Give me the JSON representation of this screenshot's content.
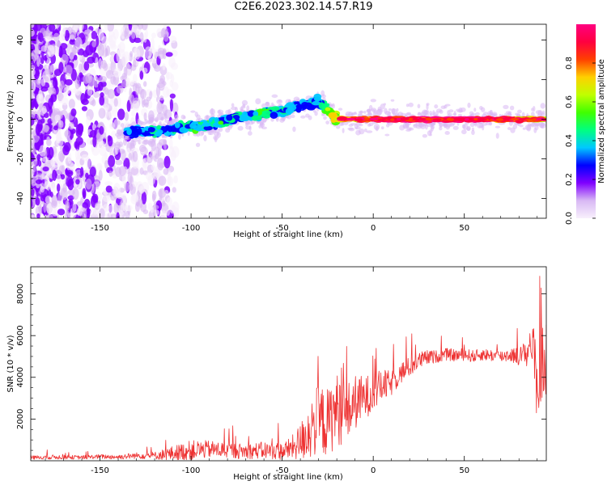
{
  "title": "C2E6.2023.302.14.57.R19",
  "chart_data": [
    {
      "type": "heatmap",
      "xlabel": "Height of straight line (km)",
      "ylabel": "Frequency (Hz)",
      "xlim": [
        -188,
        95
      ],
      "ylim": [
        -50,
        48
      ],
      "xticks": [
        -150,
        -100,
        -50,
        0,
        50
      ],
      "yticks": [
        40,
        20,
        0,
        -20,
        -40
      ],
      "colorbar": {
        "label": "Normalized spectral amplitude",
        "range": [
          0,
          1
        ],
        "ticks": [
          "0.0",
          "0.2",
          "0.4",
          "0.6",
          "0.8"
        ],
        "tick_values": [
          0,
          0.2,
          0.4,
          0.6,
          0.8
        ],
        "colormap": "hsv-rainbow",
        "colors": [
          "#f8f0fc",
          "#d8b8f4",
          "#8000ff",
          "#0000ff",
          "#00c8ff",
          "#00ff80",
          "#40ff00",
          "#c0ff00",
          "#ffd000",
          "#ff4000",
          "#ff0040",
          "#ff0080"
        ]
      },
      "ridge": [
        {
          "x": -135,
          "y": -6,
          "amp": 0.3
        },
        {
          "x": -120,
          "y": -6,
          "amp": 0.35
        },
        {
          "x": -110,
          "y": -5,
          "amp": 0.35
        },
        {
          "x": -100,
          "y": -4,
          "amp": 0.4
        },
        {
          "x": -90,
          "y": -3,
          "amp": 0.4
        },
        {
          "x": -80,
          "y": 0,
          "amp": 0.35
        },
        {
          "x": -70,
          "y": 1,
          "amp": 0.4
        },
        {
          "x": -60,
          "y": 3,
          "amp": 0.4
        },
        {
          "x": -50,
          "y": 4,
          "amp": 0.35
        },
        {
          "x": -40,
          "y": 7,
          "amp": 0.3
        },
        {
          "x": -30,
          "y": 9,
          "amp": 0.3
        },
        {
          "x": -20,
          "y": 0,
          "amp": 0.7
        },
        {
          "x": 0,
          "y": 0,
          "amp": 0.9
        },
        {
          "x": 50,
          "y": 0,
          "amp": 1.0
        },
        {
          "x": 95,
          "y": 0,
          "amp": 0.7
        }
      ]
    },
    {
      "type": "line",
      "xlabel": "Height of straight line (km)",
      "ylabel": "SNR (10 * v/v)",
      "xlim": [
        -188,
        95
      ],
      "ylim": [
        0,
        9300
      ],
      "xticks": [
        -150,
        -100,
        -50,
        0,
        50
      ],
      "yticks": [
        2000,
        4000,
        6000,
        8000
      ],
      "series": [
        {
          "color": "#ee3333",
          "x": [
            -188,
            -175,
            -160,
            -150,
            -140,
            -130,
            -120,
            -110,
            -100,
            -90,
            -80,
            -70,
            -60,
            -50,
            -45,
            -40,
            -35,
            -30,
            -25,
            -20,
            -15,
            -10,
            -5,
            0,
            5,
            10,
            15,
            20,
            25,
            30,
            35,
            40,
            45,
            50,
            55,
            60,
            65,
            70,
            75,
            80,
            85,
            88,
            90,
            93,
            95
          ],
          "y": [
            150,
            180,
            160,
            200,
            180,
            250,
            250,
            350,
            500,
            550,
            500,
            450,
            500,
            450,
            600,
            900,
            1500,
            2000,
            1800,
            2500,
            2200,
            2800,
            3000,
            3300,
            3600,
            3700,
            4200,
            4500,
            4800,
            4950,
            5000,
            5100,
            5050,
            5100,
            5000,
            5100,
            5050,
            5000,
            5100,
            5000,
            5200,
            5600,
            3500,
            4800,
            4500
          ],
          "spread": [
            150,
            180,
            150,
            180,
            200,
            250,
            300,
            600,
            800,
            700,
            650,
            600,
            700,
            700,
            900,
            1500,
            2500,
            2800,
            2800,
            2900,
            2500,
            2200,
            1800,
            1500,
            1300,
            1000,
            900,
            800,
            700,
            600,
            500,
            500,
            500,
            500,
            500,
            500,
            500,
            500,
            600,
            700,
            1200,
            2500,
            3000,
            3000,
            2500
          ]
        }
      ]
    }
  ]
}
